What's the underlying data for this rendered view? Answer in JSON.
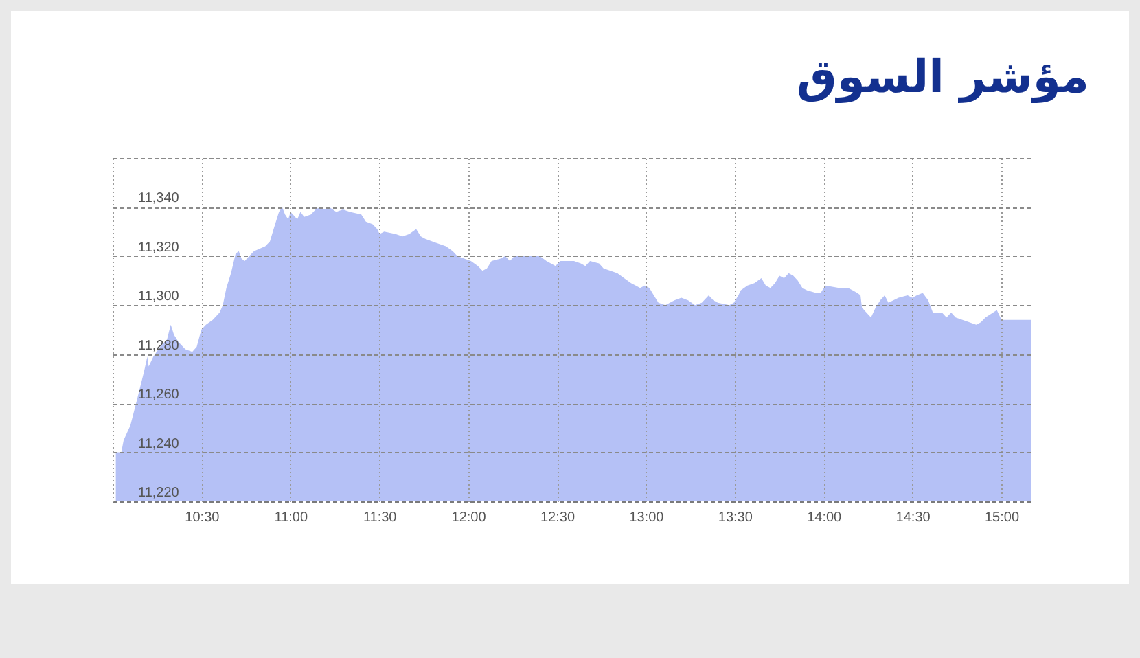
{
  "chart_data": {
    "type": "area",
    "title": "مؤشر السوق",
    "x": [
      10.018,
      10.049,
      10.062,
      10.1,
      10.139,
      10.177,
      10.195,
      10.203,
      10.229,
      10.267,
      10.306,
      10.327,
      10.345,
      10.37,
      10.409,
      10.448,
      10.473,
      10.499,
      10.525,
      10.563,
      10.602,
      10.62,
      10.64,
      10.666,
      10.692,
      10.71,
      10.725,
      10.743,
      10.769,
      10.795,
      10.859,
      10.885,
      10.91,
      10.936,
      10.954,
      10.97,
      10.988,
      11.001,
      11.039,
      11.057,
      11.078,
      11.116,
      11.142,
      11.168,
      11.193,
      11.219,
      11.258,
      11.296,
      11.335,
      11.399,
      11.425,
      11.463,
      11.489,
      11.502,
      11.528,
      11.592,
      11.631,
      11.669,
      11.708,
      11.734,
      11.759,
      11.798,
      11.836,
      11.875,
      11.914,
      11.939,
      11.978,
      12.016,
      12.055,
      12.081,
      12.106,
      12.132,
      12.183,
      12.209,
      12.235,
      12.261,
      12.325,
      12.403,
      12.441,
      12.492,
      12.518,
      12.596,
      12.634,
      12.66,
      12.686,
      12.737,
      12.762,
      12.801,
      12.84,
      12.878,
      12.917,
      12.943,
      12.968,
      12.994,
      13.02,
      13.045,
      13.071,
      13.11,
      13.161,
      13.2,
      13.238,
      13.277,
      13.315,
      13.354,
      13.38,
      13.405,
      13.47,
      13.495,
      13.521,
      13.534,
      13.572,
      13.611,
      13.65,
      13.675,
      13.701,
      13.727,
      13.752,
      13.778,
      13.804,
      13.83,
      13.855,
      13.881,
      13.907,
      13.958,
      13.984,
      14.01,
      14.087,
      14.138,
      14.164,
      14.19,
      14.208,
      14.216,
      14.241,
      14.267,
      14.293,
      14.319,
      14.344,
      14.365,
      14.422,
      14.473,
      14.499,
      14.525,
      14.558,
      14.589,
      14.615,
      14.666,
      14.692,
      14.718,
      14.743,
      14.782,
      14.821,
      14.859,
      14.885,
      14.911,
      14.975,
      14.988,
      15.001,
      15.17
    ],
    "series": [
      {
        "color": "#b5c1f6",
        "values": [
          11240,
          11240,
          11245,
          11251,
          11262,
          11273,
          11279,
          11275,
          11279,
          11283,
          11286,
          11292,
          11288,
          11285,
          11282,
          11281,
          11283,
          11290,
          11292,
          11294,
          11297,
          11300,
          11307,
          11313,
          11321,
          11322,
          11319,
          11318,
          11320,
          11322,
          11324,
          11326,
          11332,
          11338,
          11340,
          11337,
          11335,
          11338,
          11335,
          11338,
          11336,
          11337,
          11339,
          11340,
          11339,
          11340,
          11338,
          11339,
          11338,
          11337,
          11334,
          11333,
          11331,
          11329,
          11330,
          11329,
          11328,
          11329,
          11331,
          11328,
          11327,
          11326,
          11325,
          11324,
          11322,
          11320,
          11319,
          11318,
          11316,
          11314,
          11315,
          11318,
          11319,
          11320,
          11318,
          11320,
          11320,
          11320,
          11318,
          11316,
          11318,
          11318,
          11317,
          11316,
          11318,
          11317,
          11315,
          11314,
          11313,
          11311,
          11309,
          11308,
          11307,
          11308,
          11307,
          11304,
          11301,
          11300,
          11302,
          11303,
          11302,
          11300,
          11301,
          11304,
          11302,
          11301,
          11300,
          11301,
          11304,
          11306,
          11308,
          11309,
          11311,
          11308,
          11307,
          11309,
          11312,
          11311,
          11313,
          11312,
          11310,
          11307,
          11306,
          11305,
          11305,
          11308,
          11307,
          11307,
          11306,
          11305,
          11304,
          11299,
          11297,
          11295,
          11299,
          11302,
          11304,
          11301,
          11303,
          11304,
          11303,
          11304,
          11305,
          11302,
          11297,
          11297,
          11295,
          11297,
          11295,
          11294,
          11293,
          11292,
          11293,
          11295,
          11298,
          11296,
          11294,
          11294
        ]
      }
    ],
    "xlim": [
      10,
      15.17
    ],
    "xticks": [
      {
        "value": 10.5,
        "label": "10:30"
      },
      {
        "value": 11,
        "label": "11:00"
      },
      {
        "value": 11.5,
        "label": "11:30"
      },
      {
        "value": 12,
        "label": "12:00"
      },
      {
        "value": 12.5,
        "label": "12:30"
      },
      {
        "value": 13,
        "label": "13:00"
      },
      {
        "value": 13.5,
        "label": "13:30"
      },
      {
        "value": 14,
        "label": "14:00"
      },
      {
        "value": 14.5,
        "label": "14:30"
      },
      {
        "value": 15,
        "label": "15:00"
      }
    ],
    "ylim": [
      11220,
      11360
    ],
    "yticks": [
      {
        "value": 11220,
        "label": "11,220"
      },
      {
        "value": 11240,
        "label": "11,240"
      },
      {
        "value": 11260,
        "label": "11,260"
      },
      {
        "value": 11280,
        "label": "11,280"
      },
      {
        "value": 11300,
        "label": "11,300"
      },
      {
        "value": 11320,
        "label": "11,320"
      },
      {
        "value": 11340,
        "label": "11,340"
      },
      {
        "value": 11360,
        "label": null
      }
    ],
    "grid": true
  }
}
